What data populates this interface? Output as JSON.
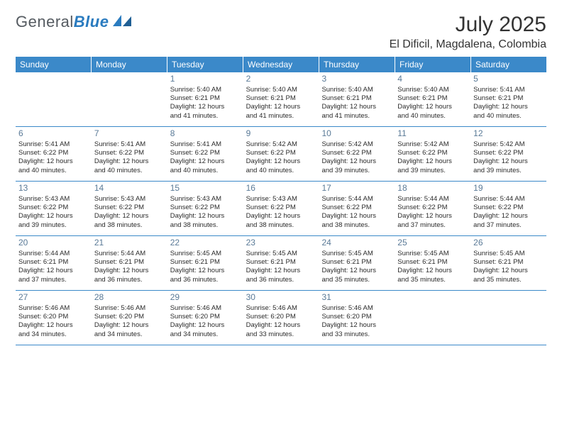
{
  "logo": {
    "part1": "General",
    "part2": "Blue"
  },
  "title": "July 2025",
  "location": "El Dificil, Magdalena, Colombia",
  "colors": {
    "header_bg": "#3b89c9",
    "header_text": "#ffffff",
    "divider": "#3b89c9",
    "day_num": "#5a7a97",
    "body_text": "#2b2b2b",
    "logo_gray": "#555b61",
    "logo_blue": "#2a7bbf"
  },
  "weekdays": [
    "Sunday",
    "Monday",
    "Tuesday",
    "Wednesday",
    "Thursday",
    "Friday",
    "Saturday"
  ],
  "weeks": [
    [
      {
        "day": "",
        "sunrise": "",
        "sunset": "",
        "daylight1": "",
        "daylight2": ""
      },
      {
        "day": "",
        "sunrise": "",
        "sunset": "",
        "daylight1": "",
        "daylight2": ""
      },
      {
        "day": "1",
        "sunrise": "Sunrise: 5:40 AM",
        "sunset": "Sunset: 6:21 PM",
        "daylight1": "Daylight: 12 hours",
        "daylight2": "and 41 minutes."
      },
      {
        "day": "2",
        "sunrise": "Sunrise: 5:40 AM",
        "sunset": "Sunset: 6:21 PM",
        "daylight1": "Daylight: 12 hours",
        "daylight2": "and 41 minutes."
      },
      {
        "day": "3",
        "sunrise": "Sunrise: 5:40 AM",
        "sunset": "Sunset: 6:21 PM",
        "daylight1": "Daylight: 12 hours",
        "daylight2": "and 41 minutes."
      },
      {
        "day": "4",
        "sunrise": "Sunrise: 5:40 AM",
        "sunset": "Sunset: 6:21 PM",
        "daylight1": "Daylight: 12 hours",
        "daylight2": "and 40 minutes."
      },
      {
        "day": "5",
        "sunrise": "Sunrise: 5:41 AM",
        "sunset": "Sunset: 6:21 PM",
        "daylight1": "Daylight: 12 hours",
        "daylight2": "and 40 minutes."
      }
    ],
    [
      {
        "day": "6",
        "sunrise": "Sunrise: 5:41 AM",
        "sunset": "Sunset: 6:22 PM",
        "daylight1": "Daylight: 12 hours",
        "daylight2": "and 40 minutes."
      },
      {
        "day": "7",
        "sunrise": "Sunrise: 5:41 AM",
        "sunset": "Sunset: 6:22 PM",
        "daylight1": "Daylight: 12 hours",
        "daylight2": "and 40 minutes."
      },
      {
        "day": "8",
        "sunrise": "Sunrise: 5:41 AM",
        "sunset": "Sunset: 6:22 PM",
        "daylight1": "Daylight: 12 hours",
        "daylight2": "and 40 minutes."
      },
      {
        "day": "9",
        "sunrise": "Sunrise: 5:42 AM",
        "sunset": "Sunset: 6:22 PM",
        "daylight1": "Daylight: 12 hours",
        "daylight2": "and 40 minutes."
      },
      {
        "day": "10",
        "sunrise": "Sunrise: 5:42 AM",
        "sunset": "Sunset: 6:22 PM",
        "daylight1": "Daylight: 12 hours",
        "daylight2": "and 39 minutes."
      },
      {
        "day": "11",
        "sunrise": "Sunrise: 5:42 AM",
        "sunset": "Sunset: 6:22 PM",
        "daylight1": "Daylight: 12 hours",
        "daylight2": "and 39 minutes."
      },
      {
        "day": "12",
        "sunrise": "Sunrise: 5:42 AM",
        "sunset": "Sunset: 6:22 PM",
        "daylight1": "Daylight: 12 hours",
        "daylight2": "and 39 minutes."
      }
    ],
    [
      {
        "day": "13",
        "sunrise": "Sunrise: 5:43 AM",
        "sunset": "Sunset: 6:22 PM",
        "daylight1": "Daylight: 12 hours",
        "daylight2": "and 39 minutes."
      },
      {
        "day": "14",
        "sunrise": "Sunrise: 5:43 AM",
        "sunset": "Sunset: 6:22 PM",
        "daylight1": "Daylight: 12 hours",
        "daylight2": "and 38 minutes."
      },
      {
        "day": "15",
        "sunrise": "Sunrise: 5:43 AM",
        "sunset": "Sunset: 6:22 PM",
        "daylight1": "Daylight: 12 hours",
        "daylight2": "and 38 minutes."
      },
      {
        "day": "16",
        "sunrise": "Sunrise: 5:43 AM",
        "sunset": "Sunset: 6:22 PM",
        "daylight1": "Daylight: 12 hours",
        "daylight2": "and 38 minutes."
      },
      {
        "day": "17",
        "sunrise": "Sunrise: 5:44 AM",
        "sunset": "Sunset: 6:22 PM",
        "daylight1": "Daylight: 12 hours",
        "daylight2": "and 38 minutes."
      },
      {
        "day": "18",
        "sunrise": "Sunrise: 5:44 AM",
        "sunset": "Sunset: 6:22 PM",
        "daylight1": "Daylight: 12 hours",
        "daylight2": "and 37 minutes."
      },
      {
        "day": "19",
        "sunrise": "Sunrise: 5:44 AM",
        "sunset": "Sunset: 6:22 PM",
        "daylight1": "Daylight: 12 hours",
        "daylight2": "and 37 minutes."
      }
    ],
    [
      {
        "day": "20",
        "sunrise": "Sunrise: 5:44 AM",
        "sunset": "Sunset: 6:21 PM",
        "daylight1": "Daylight: 12 hours",
        "daylight2": "and 37 minutes."
      },
      {
        "day": "21",
        "sunrise": "Sunrise: 5:44 AM",
        "sunset": "Sunset: 6:21 PM",
        "daylight1": "Daylight: 12 hours",
        "daylight2": "and 36 minutes."
      },
      {
        "day": "22",
        "sunrise": "Sunrise: 5:45 AM",
        "sunset": "Sunset: 6:21 PM",
        "daylight1": "Daylight: 12 hours",
        "daylight2": "and 36 minutes."
      },
      {
        "day": "23",
        "sunrise": "Sunrise: 5:45 AM",
        "sunset": "Sunset: 6:21 PM",
        "daylight1": "Daylight: 12 hours",
        "daylight2": "and 36 minutes."
      },
      {
        "day": "24",
        "sunrise": "Sunrise: 5:45 AM",
        "sunset": "Sunset: 6:21 PM",
        "daylight1": "Daylight: 12 hours",
        "daylight2": "and 35 minutes."
      },
      {
        "day": "25",
        "sunrise": "Sunrise: 5:45 AM",
        "sunset": "Sunset: 6:21 PM",
        "daylight1": "Daylight: 12 hours",
        "daylight2": "and 35 minutes."
      },
      {
        "day": "26",
        "sunrise": "Sunrise: 5:45 AM",
        "sunset": "Sunset: 6:21 PM",
        "daylight1": "Daylight: 12 hours",
        "daylight2": "and 35 minutes."
      }
    ],
    [
      {
        "day": "27",
        "sunrise": "Sunrise: 5:46 AM",
        "sunset": "Sunset: 6:20 PM",
        "daylight1": "Daylight: 12 hours",
        "daylight2": "and 34 minutes."
      },
      {
        "day": "28",
        "sunrise": "Sunrise: 5:46 AM",
        "sunset": "Sunset: 6:20 PM",
        "daylight1": "Daylight: 12 hours",
        "daylight2": "and 34 minutes."
      },
      {
        "day": "29",
        "sunrise": "Sunrise: 5:46 AM",
        "sunset": "Sunset: 6:20 PM",
        "daylight1": "Daylight: 12 hours",
        "daylight2": "and 34 minutes."
      },
      {
        "day": "30",
        "sunrise": "Sunrise: 5:46 AM",
        "sunset": "Sunset: 6:20 PM",
        "daylight1": "Daylight: 12 hours",
        "daylight2": "and 33 minutes."
      },
      {
        "day": "31",
        "sunrise": "Sunrise: 5:46 AM",
        "sunset": "Sunset: 6:20 PM",
        "daylight1": "Daylight: 12 hours",
        "daylight2": "and 33 minutes."
      },
      {
        "day": "",
        "sunrise": "",
        "sunset": "",
        "daylight1": "",
        "daylight2": ""
      },
      {
        "day": "",
        "sunrise": "",
        "sunset": "",
        "daylight1": "",
        "daylight2": ""
      }
    ]
  ]
}
